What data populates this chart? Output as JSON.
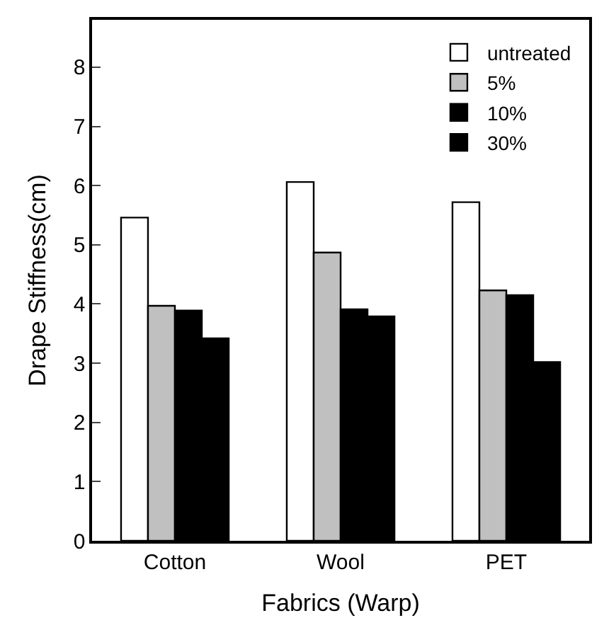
{
  "chart_data": {
    "type": "bar",
    "xlabel": "Fabrics (Warp)",
    "ylabel": "Drape Stiffness(cm)",
    "categories": [
      "Cotton",
      "Wool",
      "PET"
    ],
    "series": [
      {
        "name": "untreated",
        "color": "#ffffff",
        "values": [
          5.46,
          6.06,
          5.72
        ]
      },
      {
        "name": "5%",
        "color": "#c0c0c0",
        "values": [
          3.97,
          4.87,
          4.23
        ]
      },
      {
        "name": "10%",
        "color": "#000000",
        "values": [
          3.89,
          3.91,
          4.15
        ]
      },
      {
        "name": "30%",
        "color": "#000000",
        "values": [
          3.42,
          3.79,
          3.02
        ]
      }
    ],
    "ylim": [
      0,
      8.8
    ],
    "yticks": [
      0,
      1,
      2,
      3,
      4,
      5,
      6,
      7,
      8
    ],
    "legend": "top right"
  }
}
